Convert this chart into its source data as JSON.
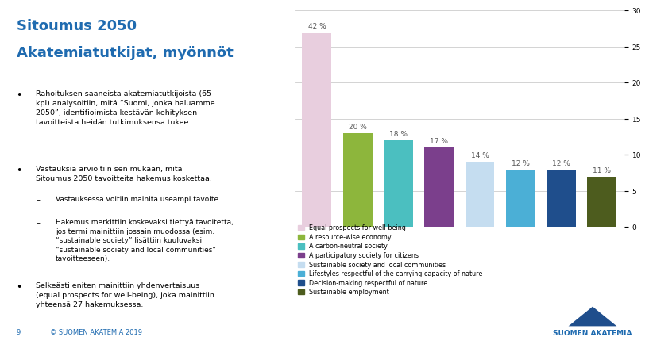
{
  "title_line1": "Sitoumus 2050",
  "title_line2": "Akatemiatutkijat, myönnöt",
  "title_color": "#1F6BB0",
  "categories": [
    "Equal prospects for well-being",
    "A resource-wise economy",
    "A carbon-neutral society",
    "A participatory society for citizens",
    "Sustainable society and local communities",
    "Lifestyles respectful of the carrying capacity of nature",
    "Decision-making respectful of nature",
    "Sustainable employment"
  ],
  "values": [
    27,
    13,
    12,
    11,
    9,
    8,
    8,
    7
  ],
  "percentages": [
    "42 %",
    "20 %",
    "18 %",
    "17 %",
    "14 %",
    "12 %",
    "12 %",
    "11 %"
  ],
  "bar_colors": [
    "#E8CEDE",
    "#8DB63C",
    "#4BBFC0",
    "#7B3F8C",
    "#C5DDF0",
    "#4BAFD6",
    "#1F4E8C",
    "#4D5C1E"
  ],
  "ylim": [
    0,
    30
  ],
  "yticks": [
    0,
    5,
    10,
    15,
    20,
    25,
    30
  ],
  "background_color": "#FFFFFF",
  "grid_color": "#CCCCCC",
  "title_color_footer": "#1F6BB0",
  "logo_color": "#1F4E8C",
  "logo_text_color": "#1F6BB0"
}
